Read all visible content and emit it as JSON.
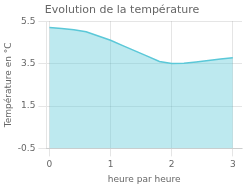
{
  "chart_data": {
    "type": "area",
    "title": "Evolution de la température",
    "x_label": "heure par heure",
    "y_label": "Température en °C",
    "x": [
      0,
      0.2,
      0.4,
      0.6,
      0.8,
      1.0,
      1.2,
      1.4,
      1.6,
      1.8,
      2.0,
      2.2,
      2.4,
      2.6,
      2.8,
      3.0
    ],
    "values": [
      5.2,
      5.15,
      5.1,
      5.0,
      4.8,
      4.6,
      4.35,
      4.1,
      3.85,
      3.6,
      3.5,
      3.52,
      3.58,
      3.65,
      3.72,
      3.78
    ],
    "color": "#5bc8d8",
    "xlim": [
      -0.05,
      3.15
    ],
    "xticks": [
      0,
      1,
      2,
      3
    ],
    "ylim": [
      -0.5,
      5.5
    ],
    "yticks": [
      -0.5,
      1.5,
      3.5,
      5.5
    ],
    "grid": true
  }
}
